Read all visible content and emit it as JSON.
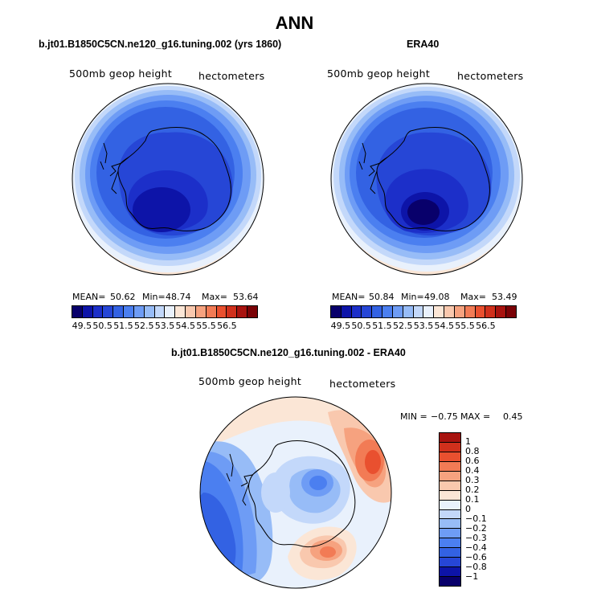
{
  "title": "ANN",
  "panels": [
    {
      "subtitle": "b.jt01.B1850C5CN.ne120_g16.tuning.002 (yrs 1860)",
      "variable": "500mb geop height",
      "units": "hectometers",
      "mean_label": "MEAN=",
      "mean": "50.62",
      "min_label": "Min=",
      "min": "48.74",
      "max_label": "Max=",
      "max": "53.64"
    },
    {
      "subtitle": "ERA40",
      "variable": "500mb geop height",
      "units": "hectometers",
      "mean_label": "MEAN=",
      "mean": "50.84",
      "min_label": "Min=",
      "min": "49.08",
      "max_label": "Max=",
      "max": "53.49"
    }
  ],
  "colorbar": {
    "colors": [
      "#08006b",
      "#0d14a8",
      "#1c2fc9",
      "#2646d6",
      "#3362e3",
      "#4b7ff0",
      "#6e9cf5",
      "#97bcf7",
      "#c3d8fa",
      "#e9f1fc",
      "#fbe6d6",
      "#f9c8ae",
      "#f6a27f",
      "#f27b55",
      "#e9502f",
      "#d0301c",
      "#a8130f",
      "#7a0206"
    ],
    "labels": [
      "49.5",
      "50.5",
      "51.5",
      "52.5",
      "53.5",
      "54.5",
      "55.5",
      "56.5"
    ]
  },
  "diff": {
    "subtitle": "b.jt01.B1850C5CN.ne120_g16.tuning.002 - ERA40",
    "variable": "500mb geop height",
    "units": "hectometers",
    "min_label": "MIN =",
    "min": "−0.75",
    "max_label": "MAX =",
    "max": "0.45",
    "colors": [
      "#a8130f",
      "#d0301c",
      "#e9502f",
      "#f27b55",
      "#f6a27f",
      "#f9c8ae",
      "#fbe6d6",
      "#e9f1fc",
      "#c3d8fa",
      "#97bcf7",
      "#6e9cf5",
      "#4b7ff0",
      "#3362e3",
      "#2646d6",
      "#0d14a8",
      "#08006b"
    ],
    "labels": [
      "1",
      "0.8",
      "0.6",
      "0.4",
      "0.3",
      "0.2",
      "0.1",
      "0",
      "−0.1",
      "−0.2",
      "−0.3",
      "−0.4",
      "−0.6",
      "−0.8",
      "−1"
    ]
  }
}
